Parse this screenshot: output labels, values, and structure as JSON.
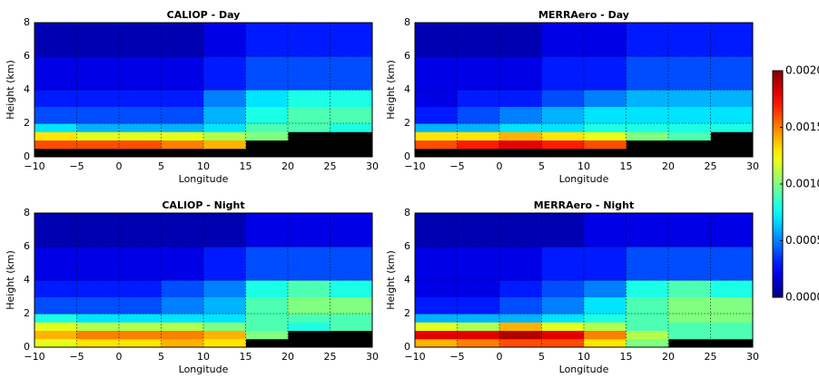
{
  "chart_data": [
    {
      "type": "heatmap",
      "title": "CALIOP - Day",
      "xlabel": "Longitude",
      "ylabel": "Height (km)",
      "x": [
        -10,
        -5,
        0,
        5,
        10,
        15,
        20,
        25,
        30
      ],
      "y": [
        0,
        0.5,
        1,
        1.5,
        2,
        3,
        4,
        6,
        8
      ],
      "values": [
        [
          null,
          null,
          null,
          null,
          null,
          null,
          null,
          null
        ],
        [
          0.0016,
          0.0016,
          0.0016,
          0.0015,
          0.0014,
          null,
          null,
          null
        ],
        [
          0.0013,
          0.0012,
          0.0012,
          0.0012,
          0.0011,
          0.001,
          null,
          null
        ],
        [
          0.0007,
          0.0006,
          0.0006,
          0.0006,
          0.0007,
          0.0009,
          0.0009,
          0.0008
        ],
        [
          0.0004,
          0.0004,
          0.0004,
          0.0004,
          0.0006,
          0.0008,
          0.0009,
          0.0009
        ],
        [
          0.0003,
          0.0003,
          0.0003,
          0.0003,
          0.0005,
          0.0007,
          0.0008,
          0.0008
        ],
        [
          0.0002,
          0.0002,
          0.0002,
          0.0002,
          0.0003,
          0.0004,
          0.0004,
          0.0004
        ],
        [
          0.0001,
          0.0001,
          0.0001,
          0.0001,
          0.0002,
          0.0003,
          0.0003,
          0.0003
        ]
      ],
      "xlim": [
        -10,
        30
      ],
      "ylim": [
        0,
        8
      ],
      "xticks": [
        {
          "value": -10,
          "label": "−10"
        },
        {
          "value": -5,
          "label": "−5"
        },
        0,
        5,
        10,
        15,
        20,
        25,
        30
      ],
      "yticks": [
        0,
        2,
        4,
        6,
        8
      ],
      "grid": true,
      "colormap": "jet",
      "clim": [
        0,
        0.002
      ],
      "missing_color": "#000000"
    },
    {
      "type": "heatmap",
      "title": "MERRAero - Day",
      "xlabel": "Longitude",
      "ylabel": "Height (km)",
      "x": [
        -10,
        -5,
        0,
        5,
        10,
        15,
        20,
        25,
        30
      ],
      "y": [
        0,
        0.5,
        1,
        1.5,
        2,
        3,
        4,
        6,
        8
      ],
      "values": [
        [
          null,
          null,
          null,
          null,
          null,
          null,
          null,
          null
        ],
        [
          0.0016,
          0.0017,
          0.0018,
          0.0017,
          0.0016,
          null,
          null,
          null
        ],
        [
          0.0013,
          0.0013,
          0.0014,
          0.0013,
          0.0012,
          0.001,
          0.0009,
          null
        ],
        [
          0.0006,
          0.0006,
          0.0007,
          0.0007,
          0.0008,
          0.0008,
          0.0008,
          0.0008
        ],
        [
          0.0003,
          0.0004,
          0.0005,
          0.0006,
          0.0007,
          0.0007,
          0.0007,
          0.0007
        ],
        [
          0.0002,
          0.0003,
          0.0003,
          0.0004,
          0.0005,
          0.0006,
          0.0006,
          0.0006
        ],
        [
          0.0002,
          0.0002,
          0.0002,
          0.0003,
          0.0003,
          0.0004,
          0.0004,
          0.0004
        ],
        [
          0.0001,
          0.0001,
          0.0001,
          0.0002,
          0.0002,
          0.0003,
          0.0003,
          0.0003
        ]
      ],
      "xlim": [
        -10,
        30
      ],
      "ylim": [
        0,
        8
      ],
      "xticks": [
        {
          "value": -10,
          "label": "−10"
        },
        {
          "value": -5,
          "label": "−5"
        },
        0,
        5,
        10,
        15,
        20,
        25,
        30
      ],
      "yticks": [
        0,
        2,
        4,
        6,
        8
      ],
      "grid": true,
      "colormap": "jet",
      "clim": [
        0,
        0.002
      ],
      "missing_color": "#000000"
    },
    {
      "type": "heatmap",
      "title": "CALIOP - Night",
      "xlabel": "Longitude",
      "ylabel": "Height (km)",
      "x": [
        -10,
        -5,
        0,
        5,
        10,
        15,
        20,
        25,
        30
      ],
      "y": [
        0,
        0.5,
        1,
        1.5,
        2,
        3,
        4,
        6,
        8
      ],
      "values": [
        [
          0.0012,
          0.0013,
          0.0013,
          0.0014,
          0.0013,
          null,
          null,
          null
        ],
        [
          0.0014,
          0.0015,
          0.0015,
          0.0015,
          0.0014,
          0.001,
          null,
          null
        ],
        [
          0.0012,
          0.0011,
          0.0011,
          0.0011,
          0.001,
          0.0009,
          0.0008,
          0.0009
        ],
        [
          0.0008,
          0.0007,
          0.0007,
          0.0007,
          0.0007,
          0.0009,
          0.0009,
          0.0009
        ],
        [
          0.0004,
          0.0004,
          0.0004,
          0.0005,
          0.0006,
          0.0009,
          0.001,
          0.001
        ],
        [
          0.0003,
          0.0003,
          0.0003,
          0.0004,
          0.0005,
          0.0008,
          0.0009,
          0.0008
        ],
        [
          0.0002,
          0.0002,
          0.0002,
          0.0002,
          0.0003,
          0.0004,
          0.0004,
          0.0004
        ],
        [
          0.0001,
          0.0001,
          0.0001,
          0.0001,
          0.0001,
          0.0002,
          0.0002,
          0.0002
        ]
      ],
      "xlim": [
        -10,
        30
      ],
      "ylim": [
        0,
        8
      ],
      "xticks": [
        {
          "value": -10,
          "label": "−10"
        },
        {
          "value": -5,
          "label": "−5"
        },
        0,
        5,
        10,
        15,
        20,
        25,
        30
      ],
      "yticks": [
        0,
        2,
        4,
        6,
        8
      ],
      "grid": true,
      "colormap": "jet",
      "clim": [
        0,
        0.002
      ],
      "missing_color": "#000000"
    },
    {
      "type": "heatmap",
      "title": "MERRAero - Night",
      "xlabel": "Longitude",
      "ylabel": "Height (km)",
      "x": [
        -10,
        -5,
        0,
        5,
        10,
        15,
        20,
        25,
        30
      ],
      "y": [
        0,
        0.5,
        1,
        1.5,
        2,
        3,
        4,
        6,
        8
      ],
      "values": [
        [
          0.0014,
          0.0015,
          0.0016,
          0.0016,
          0.0013,
          0.001,
          null,
          null
        ],
        [
          0.0018,
          0.0018,
          0.0019,
          0.0018,
          0.0015,
          0.0011,
          0.0009,
          0.0009
        ],
        [
          0.0012,
          0.0011,
          0.0014,
          0.0012,
          0.0011,
          0.0009,
          0.0009,
          0.0009
        ],
        [
          0.0006,
          0.0006,
          0.0006,
          0.0007,
          0.0008,
          0.0009,
          0.001,
          0.001
        ],
        [
          0.0003,
          0.0003,
          0.0004,
          0.0005,
          0.0007,
          0.0009,
          0.001,
          0.001
        ],
        [
          0.0002,
          0.0002,
          0.0003,
          0.0004,
          0.0005,
          0.0008,
          0.0009,
          0.0008
        ],
        [
          0.0002,
          0.0002,
          0.0002,
          0.0003,
          0.0003,
          0.0004,
          0.0004,
          0.0004
        ],
        [
          0.0001,
          0.0001,
          0.0001,
          0.0001,
          0.0002,
          0.0002,
          0.0002,
          0.0002
        ]
      ],
      "xlim": [
        -10,
        30
      ],
      "ylim": [
        0,
        8
      ],
      "xticks": [
        {
          "value": -10,
          "label": "−10"
        },
        {
          "value": -5,
          "label": "−5"
        },
        0,
        5,
        10,
        15,
        20,
        25,
        30
      ],
      "yticks": [
        0,
        2,
        4,
        6,
        8
      ],
      "grid": true,
      "colormap": "jet",
      "clim": [
        0,
        0.002
      ],
      "missing_color": "#000000"
    },
    {
      "type": "colorbar",
      "colormap": "jet",
      "clim": [
        0,
        0.002
      ],
      "ticks": [
        {
          "value": 0,
          "label": "0.0000"
        },
        {
          "value": 0.0005,
          "label": "0.0005"
        },
        {
          "value": 0.001,
          "label": "0.0010"
        },
        {
          "value": 0.0015,
          "label": "0.0015"
        },
        {
          "value": 0.002,
          "label": "0.0020"
        }
      ]
    }
  ]
}
